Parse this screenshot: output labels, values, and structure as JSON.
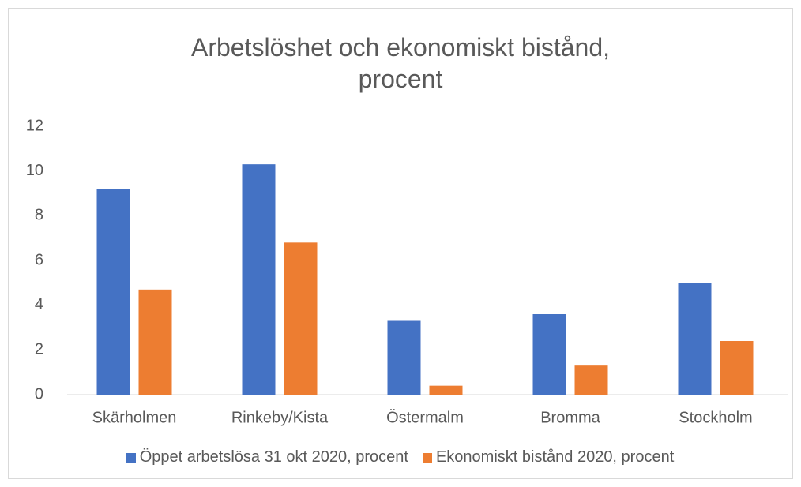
{
  "chart_data": {
    "type": "bar",
    "title": "Arbetslöshet och ekonomiskt bistånd, procent",
    "categories": [
      "Skärholmen",
      "Rinkeby/Kista",
      "Östermalm",
      "Bromma",
      "Stockholm"
    ],
    "series": [
      {
        "name": "Öppet arbetslösa 31 okt 2020, procent",
        "color": "#4472c4",
        "values": [
          9.2,
          10.3,
          3.3,
          3.6,
          5.0
        ]
      },
      {
        "name": "Ekonomiskt bistånd 2020, procent",
        "color": "#ed7d31",
        "values": [
          4.7,
          6.8,
          0.4,
          1.3,
          2.4
        ]
      }
    ],
    "ylim": [
      0,
      12
    ],
    "yticks": [
      0,
      2,
      4,
      6,
      8,
      10,
      12
    ],
    "grid": false,
    "legend": "bottom"
  }
}
